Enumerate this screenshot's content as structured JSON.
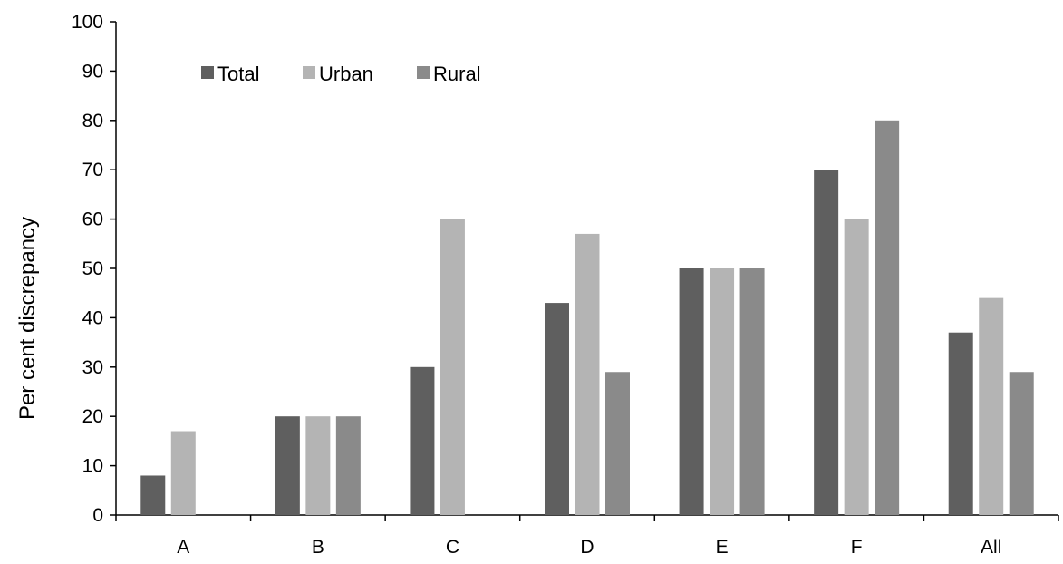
{
  "chart_data": {
    "type": "bar",
    "title": "",
    "xlabel": "",
    "ylabel": "Per cent discrepancy",
    "ylim": [
      0,
      100
    ],
    "yticks": [
      0,
      10,
      20,
      30,
      40,
      50,
      60,
      70,
      80,
      90,
      100
    ],
    "categories": [
      "A",
      "B",
      "C",
      "D",
      "E",
      "F",
      "All"
    ],
    "series": [
      {
        "name": "Total",
        "color": "#5f5f5f",
        "values": [
          8,
          20,
          30,
          43,
          50,
          70,
          37
        ]
      },
      {
        "name": "Urban",
        "color": "#b4b4b4",
        "values": [
          17,
          20,
          60,
          57,
          50,
          60,
          44
        ]
      },
      {
        "name": "Rural",
        "color": "#8a8a8a",
        "values": [
          0,
          20,
          0,
          29,
          50,
          80,
          29
        ]
      }
    ],
    "grid": false,
    "legend_position": "top-left"
  }
}
